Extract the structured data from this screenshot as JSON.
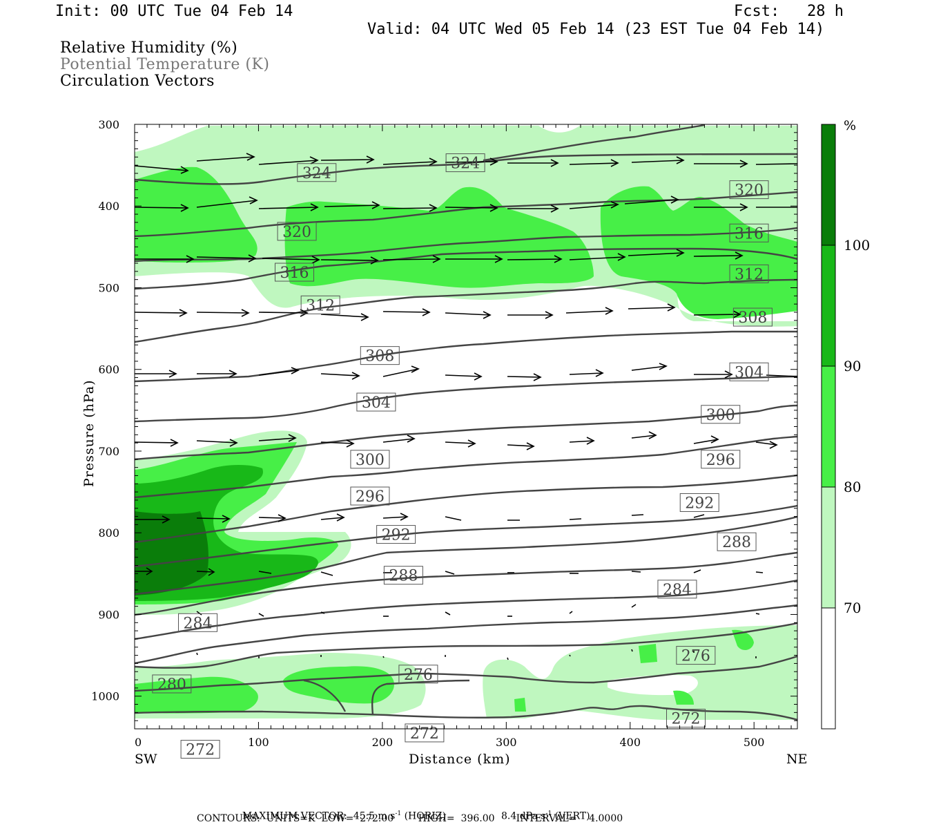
{
  "header": {
    "init": "Init: 00 UTC Tue 04 Feb 14",
    "fcst": "Fcst:   28 h",
    "valid": "Valid: 04 UTC Wed 05 Feb 14 (23 EST Tue 04 Feb 14)"
  },
  "legend": {
    "rh": "Relative Humidity (%)",
    "theta": "Potential Temperature (K)",
    "vectors": "Circulation Vectors"
  },
  "footer": {
    "max_vector_prefix": "MAXIMUM VECTOR:  45.5 m s",
    "max_vector_horiz": "(HORIZ)",
    "max_vector_vert_prefix": "8.4 dPa s",
    "max_vector_vert": "(VERT)",
    "exp": "-1",
    "contours": "CONTOURS:  UNITS=K  LOW=  272.00        HIGH=  396.00       INTERVAL=    4.0000"
  },
  "colors": {
    "rh70": "#bff7bf",
    "rh80": "#47ef47",
    "rh90": "#18b818",
    "rh100": "#0a7d0a",
    "contour": "#444444"
  },
  "chart_data": {
    "type": "cross-section",
    "xlabel": "Distance (km)",
    "ylabel": "Pressure (hPa)",
    "x_ticks": [
      0,
      100,
      200,
      300,
      400,
      500
    ],
    "y_ticks": [
      300,
      400,
      500,
      600,
      700,
      800,
      900,
      1000
    ],
    "xlim": [
      0,
      535
    ],
    "ylim": [
      300,
      1040
    ],
    "x_left_label": "SW",
    "x_right_label": "NE",
    "colorbar": {
      "unit": "%",
      "levels": [
        70,
        80,
        90,
        100
      ],
      "colors": [
        "#ffffff",
        "#bff7bf",
        "#47ef47",
        "#18b818",
        "#0a7d0a"
      ]
    },
    "isentrope_labels": [
      {
        "value": "324",
        "x": 147,
        "p": 359
      },
      {
        "value": "324",
        "x": 267,
        "p": 347
      },
      {
        "value": "320",
        "x": 131,
        "p": 431
      },
      {
        "value": "320",
        "x": 496,
        "p": 380
      },
      {
        "value": "316",
        "x": 129,
        "p": 481
      },
      {
        "value": "316",
        "x": 496,
        "p": 433
      },
      {
        "value": "312",
        "x": 150,
        "p": 521
      },
      {
        "value": "312",
        "x": 496,
        "p": 483
      },
      {
        "value": "308",
        "x": 198,
        "p": 583
      },
      {
        "value": "308",
        "x": 499,
        "p": 536
      },
      {
        "value": "304",
        "x": 195,
        "p": 640
      },
      {
        "value": "304",
        "x": 496,
        "p": 603
      },
      {
        "value": "300",
        "x": 190,
        "p": 710
      },
      {
        "value": "300",
        "x": 473,
        "p": 655
      },
      {
        "value": "296",
        "x": 190,
        "p": 755
      },
      {
        "value": "296",
        "x": 473,
        "p": 710
      },
      {
        "value": "292",
        "x": 211,
        "p": 802
      },
      {
        "value": "292",
        "x": 456,
        "p": 763
      },
      {
        "value": "288",
        "x": 217,
        "p": 852
      },
      {
        "value": "288",
        "x": 486,
        "p": 811
      },
      {
        "value": "284",
        "x": 51,
        "p": 910
      },
      {
        "value": "284",
        "x": 438,
        "p": 869
      },
      {
        "value": "280",
        "x": 30,
        "p": 985
      },
      {
        "value": "276",
        "x": 229,
        "p": 973
      },
      {
        "value": "276",
        "x": 453,
        "p": 950
      },
      {
        "value": "272",
        "x": 53,
        "p": 1065
      },
      {
        "value": "272",
        "x": 234,
        "p": 1045
      },
      {
        "value": "272",
        "x": 445,
        "p": 1027
      }
    ]
  }
}
